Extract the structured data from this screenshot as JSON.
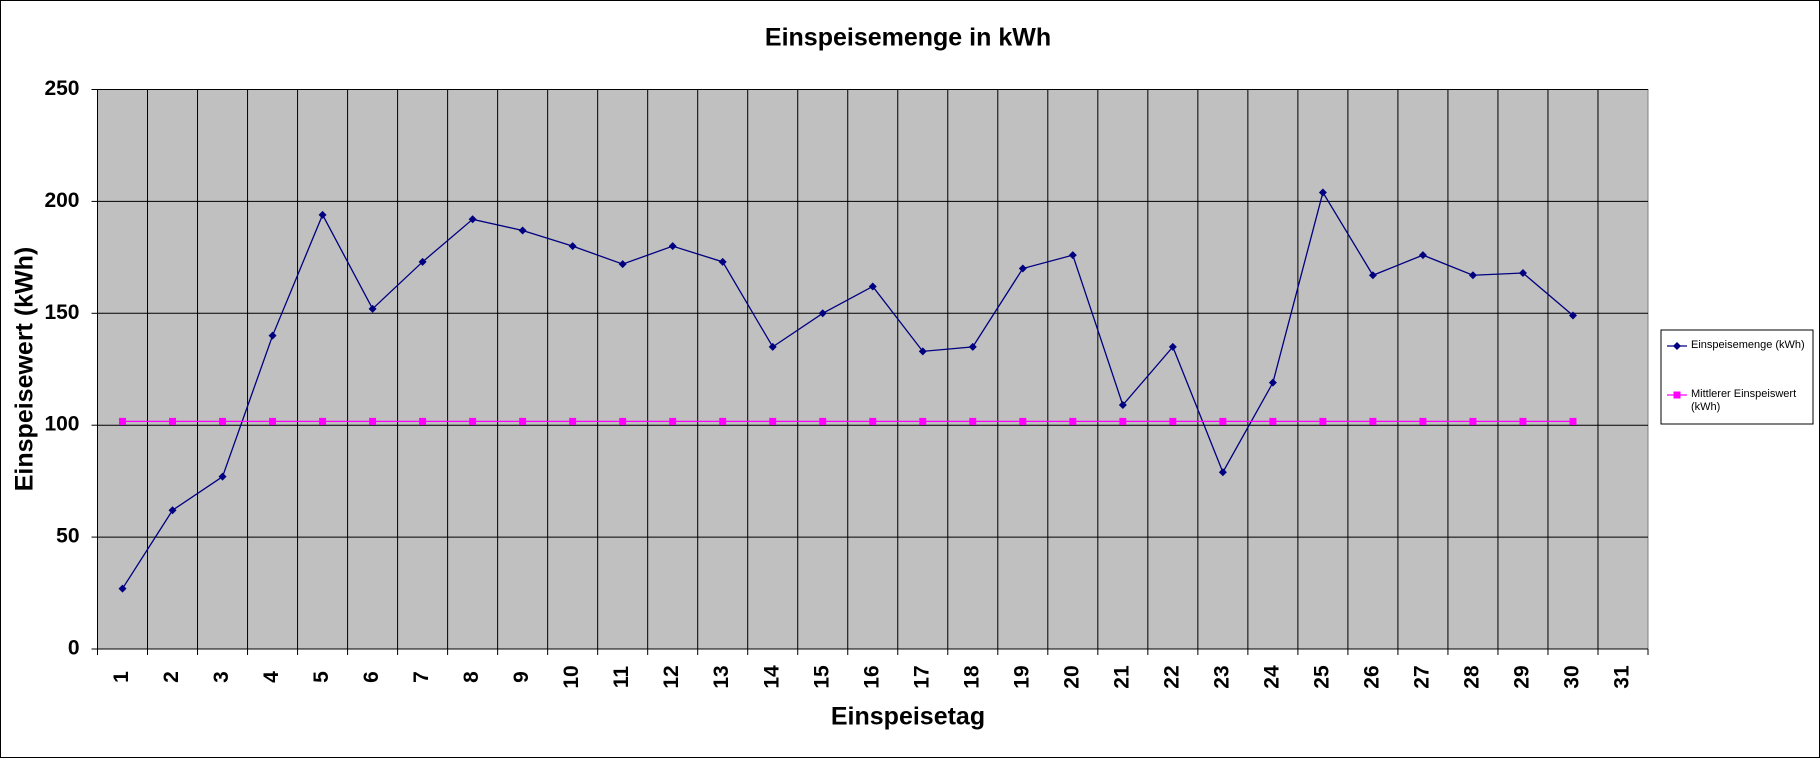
{
  "chart_data": {
    "type": "line",
    "title": "Einspeisemenge in kWh",
    "xlabel": "Einspeisetag",
    "ylabel": "Einspeisewert  (kWh)",
    "categories": [
      "1",
      "2",
      "3",
      "4",
      "5",
      "6",
      "7",
      "8",
      "9",
      "10",
      "11",
      "12",
      "13",
      "14",
      "15",
      "16",
      "17",
      "18",
      "19",
      "20",
      "21",
      "22",
      "23",
      "24",
      "25",
      "26",
      "27",
      "28",
      "29",
      "30",
      "31"
    ],
    "series": [
      {
        "name": "Einspeisemenge (kWh)",
        "color": "#000080",
        "marker": "diamond",
        "values": [
          27,
          62,
          77,
          140,
          194,
          152,
          173,
          192,
          187,
          180,
          172,
          180,
          173,
          135,
          150,
          162,
          133,
          135,
          170,
          176,
          109,
          135,
          79,
          119,
          204,
          167,
          176,
          167,
          168,
          149,
          null
        ]
      },
      {
        "name": "Mittlerer Einspeiswert (kWh)",
        "color": "#ff00ff",
        "marker": "square",
        "values": [
          101.7,
          101.7,
          101.7,
          101.7,
          101.7,
          101.7,
          101.7,
          101.7,
          101.7,
          101.7,
          101.7,
          101.7,
          101.7,
          101.7,
          101.7,
          101.7,
          101.7,
          101.7,
          101.7,
          101.7,
          101.7,
          101.7,
          101.7,
          101.7,
          101.7,
          101.7,
          101.7,
          101.7,
          101.7,
          101.7,
          null
        ]
      }
    ],
    "ylim": [
      0,
      250
    ],
    "yticks": [
      0,
      50,
      100,
      150,
      200,
      250
    ],
    "grid": true,
    "legend": "right",
    "plot_background": "#c0c0c0"
  }
}
